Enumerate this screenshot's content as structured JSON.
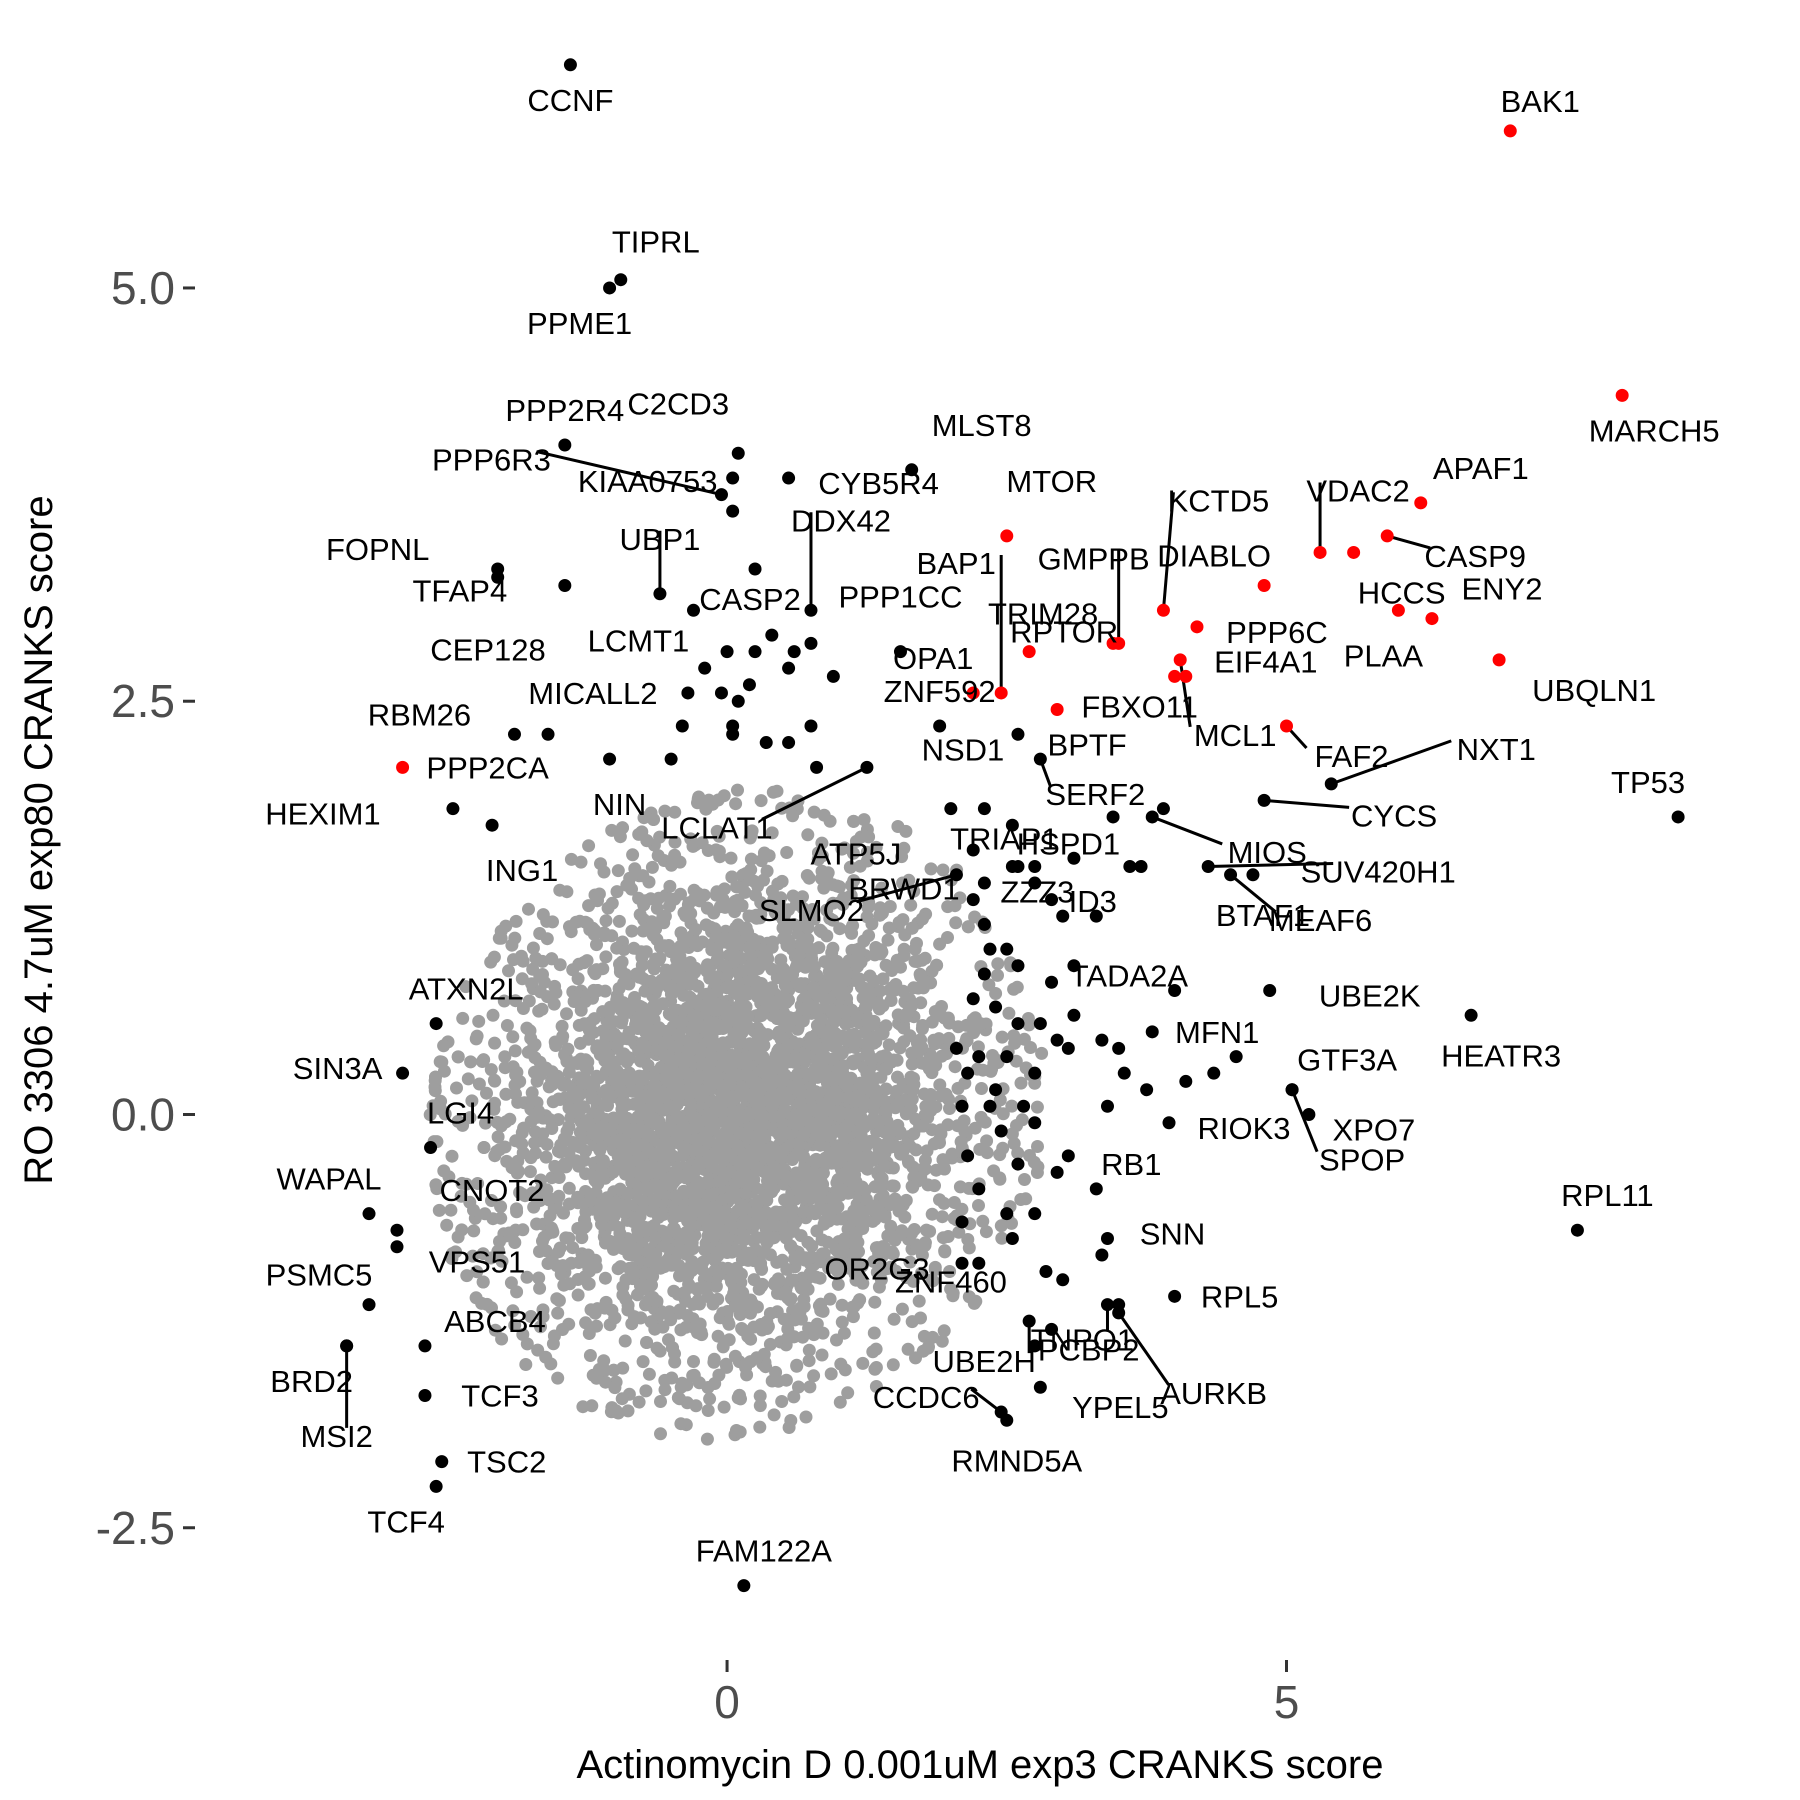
{
  "chart_data": {
    "type": "scatter",
    "title": "",
    "xlabel": "Actinomycin D 0.001uM exp3 CRANKS score",
    "ylabel": "RO 3306 4.7uM exp80 CRANKS score",
    "xlim": [
      -4.8,
      9.5
    ],
    "ylim": [
      -3.3,
      6.5
    ],
    "grid": false,
    "legend": "none",
    "xticks": [
      {
        "v": 0,
        "label": "0"
      },
      {
        "v": 5,
        "label": "5"
      }
    ],
    "yticks": [
      {
        "v": 5,
        "label": "5.0"
      },
      {
        "v": 2.5,
        "label": "2.5"
      },
      {
        "v": 0,
        "label": "0.0"
      },
      {
        "v": -2.5,
        "label": "-2.5"
      }
    ],
    "colors": {
      "background_points": "#9e9e9e",
      "highlight": "#ff0000",
      "labeled": "#000000"
    },
    "background_cloud": {
      "center": [
        0.1,
        0.0
      ],
      "sd": [
        1.05,
        0.75
      ],
      "n": 4200,
      "color": "#9e9e9e"
    },
    "series": [
      {
        "color": "#ff0000",
        "points": [
          {
            "label": "BAK1",
            "x": 7.0,
            "y": 5.95
          },
          {
            "label": "MARCH5",
            "x": 8.0,
            "y": 4.35
          },
          {
            "label": "APAF1",
            "x": 6.2,
            "y": 3.7
          },
          {
            "label": "CASP9",
            "x": 5.9,
            "y": 3.5
          },
          {
            "label": "VDAC2",
            "x": 5.3,
            "y": 3.4
          },
          {
            "label": "HCCS",
            "x": 5.6,
            "y": 3.4
          },
          {
            "label": "ENY2",
            "x": 6.3,
            "y": 3.0
          },
          {
            "label": "PLAA",
            "x": 6.0,
            "y": 3.05
          },
          {
            "label": "UBQLN1",
            "x": 6.9,
            "y": 2.75
          },
          {
            "label": "DIABLO",
            "x": 4.8,
            "y": 3.2
          },
          {
            "label": "KCTD5",
            "x": 3.9,
            "y": 3.05
          },
          {
            "label": "PPP6C",
            "x": 4.2,
            "y": 2.95
          },
          {
            "label": "MCL1",
            "x": 4.05,
            "y": 2.75
          },
          {
            "label": "EIF4A1",
            "x": 4.1,
            "y": 2.65
          },
          {
            "label": "FBXO11",
            "x": 4.0,
            "y": 2.65
          },
          {
            "label": "FAF2",
            "x": 5.0,
            "y": 2.35
          },
          {
            "label": "MTOR",
            "x": 2.5,
            "y": 3.5
          },
          {
            "label": "GMPPB",
            "x": 3.5,
            "y": 2.85
          },
          {
            "label": "TRIM28",
            "x": 3.45,
            "y": 2.85
          },
          {
            "label": "RPTOR",
            "x": 2.7,
            "y": 2.8
          },
          {
            "label": "BAP1",
            "x": 2.45,
            "y": 2.55
          },
          {
            "label": "OPA1",
            "x": 2.2,
            "y": 2.55
          },
          {
            "label": "BPTF",
            "x": 2.95,
            "y": 2.45
          },
          {
            "label": "PPP2CA",
            "x": -2.9,
            "y": 2.1
          }
        ]
      },
      {
        "color": "#000000",
        "points": [
          {
            "label": "CCNF",
            "x": -1.4,
            "y": 6.35
          },
          {
            "label": "TIPRL",
            "x": -0.95,
            "y": 5.05
          },
          {
            "label": "PPME1",
            "x": -1.05,
            "y": 5.0
          },
          {
            "label": "PPP2R4",
            "x": -1.45,
            "y": 4.05
          },
          {
            "label": "PPP6R3",
            "x": -0.05,
            "y": 3.75
          },
          {
            "label": "KIAA0753",
            "x": 0.05,
            "y": 3.65
          },
          {
            "label": "C2CD3",
            "x": 0.1,
            "y": 4.0
          },
          {
            "label": "CYB5R4",
            "x": 0.55,
            "y": 3.85
          },
          {
            "label": "MLST8",
            "x": 1.65,
            "y": 3.9
          },
          {
            "label": "FOPNL",
            "x": -2.05,
            "y": 3.3
          },
          {
            "label": "TFAP4",
            "x": -1.45,
            "y": 3.2
          },
          {
            "label": "UBP1",
            "x": -0.6,
            "y": 3.15
          },
          {
            "label": "LCMT1",
            "x": -0.3,
            "y": 3.05
          },
          {
            "label": "DDX42",
            "x": 0.75,
            "y": 3.05
          },
          {
            "label": "CASP2",
            "x": 0.25,
            "y": 3.3
          },
          {
            "label": "PPP1CC",
            "x": 1.55,
            "y": 2.8
          },
          {
            "label": "RBM26",
            "x": -1.9,
            "y": 2.3
          },
          {
            "label": "CEP128",
            "x": -1.6,
            "y": 2.3
          },
          {
            "label": "MICALL2",
            "x": -0.35,
            "y": 2.55
          },
          {
            "label": "NIN",
            "x": -1.05,
            "y": 2.15
          },
          {
            "label": "LCLAT1",
            "x": 1.25,
            "y": 2.1
          },
          {
            "label": "ZNF592",
            "x": 1.9,
            "y": 2.35
          },
          {
            "label": "NSD1",
            "x": 2.6,
            "y": 2.3
          },
          {
            "label": "HEXIM1",
            "x": -2.45,
            "y": 1.85
          },
          {
            "label": "TRIAP1",
            "x": 2.3,
            "y": 1.85
          },
          {
            "label": "SERF2",
            "x": 2.8,
            "y": 2.15
          },
          {
            "label": "ATP5J",
            "x": 2.0,
            "y": 1.85
          },
          {
            "label": "ING1",
            "x": -2.1,
            "y": 1.75
          },
          {
            "label": "ZZZ3",
            "x": 2.55,
            "y": 1.5
          },
          {
            "label": "HSPD1",
            "x": 3.9,
            "y": 1.85
          },
          {
            "label": "MIOS",
            "x": 3.8,
            "y": 1.8
          },
          {
            "label": "CYCS",
            "x": 4.8,
            "y": 1.9
          },
          {
            "label": "NXT1",
            "x": 5.4,
            "y": 2.0
          },
          {
            "label": "TP53",
            "x": 8.5,
            "y": 1.8
          },
          {
            "label": "BRWD1",
            "x": 3.1,
            "y": 1.55
          },
          {
            "label": "SUV420H1",
            "x": 4.3,
            "y": 1.5
          },
          {
            "label": "SLMO2",
            "x": 2.05,
            "y": 1.45
          },
          {
            "label": "ID3",
            "x": 3.0,
            "y": 1.2
          },
          {
            "label": "BTAF1",
            "x": 4.7,
            "y": 1.45
          },
          {
            "label": "MEAF6",
            "x": 4.5,
            "y": 1.45
          },
          {
            "label": "TADA2A",
            "x": 3.1,
            "y": 0.9
          },
          {
            "label": "UBE2K",
            "x": 4.85,
            "y": 0.75
          },
          {
            "label": "HEATR3",
            "x": 6.65,
            "y": 0.6
          },
          {
            "label": "ATXN2L",
            "x": -2.6,
            "y": 0.55
          },
          {
            "label": "MFN1",
            "x": 3.8,
            "y": 0.5
          },
          {
            "label": "GTF3A",
            "x": 5.05,
            "y": 0.15
          },
          {
            "label": "SIN3A",
            "x": -2.9,
            "y": 0.25
          },
          {
            "label": "LGI4",
            "x": -2.65,
            "y": -0.2
          },
          {
            "label": "XPO7",
            "x": 5.2,
            "y": 0.0
          },
          {
            "label": "RIOK3",
            "x": 3.95,
            "y": -0.05
          },
          {
            "label": "SPOP",
            "x": 5.05,
            "y": 0.15
          },
          {
            "label": "RB1",
            "x": 3.3,
            "y": -0.45
          },
          {
            "label": "WAPAL",
            "x": -3.2,
            "y": -0.6
          },
          {
            "label": "CNOT2",
            "x": -2.95,
            "y": -0.7
          },
          {
            "label": "VPS51",
            "x": -2.95,
            "y": -0.8
          },
          {
            "label": "SNN",
            "x": 3.4,
            "y": -0.75
          },
          {
            "label": "RPL11",
            "x": 7.6,
            "y": -0.7
          },
          {
            "label": "OR2G3",
            "x": 2.1,
            "y": -0.9
          },
          {
            "label": "RPL5",
            "x": 4.0,
            "y": -1.1
          },
          {
            "label": "ZNF460",
            "x": 2.85,
            "y": -0.95
          },
          {
            "label": "TNPO1",
            "x": 3.4,
            "y": -1.15
          },
          {
            "label": "PSMC5",
            "x": -3.2,
            "y": -1.15
          },
          {
            "label": "ABCB4",
            "x": -2.7,
            "y": -1.4
          },
          {
            "label": "PCBP2",
            "x": 3.5,
            "y": -1.15
          },
          {
            "label": "UBE2H",
            "x": 2.7,
            "y": -1.25
          },
          {
            "label": "AURKB",
            "x": 3.5,
            "y": -1.2
          },
          {
            "label": "BRD2",
            "x": -3.4,
            "y": -1.4
          },
          {
            "label": "MSI2",
            "x": -3.4,
            "y": -1.4
          },
          {
            "label": "TCF3",
            "x": -2.7,
            "y": -1.7
          },
          {
            "label": "CCDC6",
            "x": 2.45,
            "y": -1.8
          },
          {
            "label": "YPEL5",
            "x": 2.8,
            "y": -1.65
          },
          {
            "label": "RMND5A",
            "x": 2.5,
            "y": -1.85
          },
          {
            "label": "TSC2",
            "x": -2.55,
            "y": -2.1
          },
          {
            "label": "TCF4",
            "x": -2.6,
            "y": -2.25
          },
          {
            "label": "FAM122A",
            "x": 0.15,
            "y": -2.85
          }
        ]
      }
    ],
    "extra_points": [
      [
        -2.05,
        3.25
      ],
      [
        0.05,
        3.85
      ],
      [
        0.25,
        2.8
      ],
      [
        0.6,
        2.8
      ],
      [
        0.75,
        2.85
      ],
      [
        0.95,
        2.65
      ],
      [
        0.0,
        2.8
      ],
      [
        -0.2,
        2.7
      ],
      [
        0.4,
        2.9
      ],
      [
        0.55,
        2.7
      ],
      [
        0.1,
        2.5
      ],
      [
        -0.05,
        2.55
      ],
      [
        0.2,
        2.6
      ],
      [
        0.35,
        2.25
      ],
      [
        0.05,
        2.35
      ],
      [
        -0.4,
        2.35
      ],
      [
        -0.5,
        2.15
      ],
      [
        0.05,
        2.3
      ],
      [
        0.8,
        2.1
      ],
      [
        0.55,
        2.25
      ],
      [
        0.75,
        2.35
      ],
      [
        2.2,
        1.6
      ],
      [
        2.55,
        1.75
      ],
      [
        2.3,
        1.4
      ],
      [
        2.6,
        1.5
      ],
      [
        2.75,
        1.5
      ],
      [
        2.75,
        1.4
      ],
      [
        2.9,
        1.3
      ],
      [
        2.2,
        1.3
      ],
      [
        2.3,
        1.15
      ],
      [
        2.35,
        1.0
      ],
      [
        2.5,
        1.0
      ],
      [
        2.3,
        0.85
      ],
      [
        2.6,
        0.9
      ],
      [
        2.2,
        0.7
      ],
      [
        2.4,
        0.65
      ],
      [
        2.6,
        0.55
      ],
      [
        2.8,
        0.55
      ],
      [
        2.9,
        0.8
      ],
      [
        3.1,
        0.6
      ],
      [
        3.05,
        0.4
      ],
      [
        2.95,
        0.45
      ],
      [
        2.5,
        0.35
      ],
      [
        2.25,
        0.35
      ],
      [
        2.05,
        0.4
      ],
      [
        2.15,
        0.25
      ],
      [
        2.4,
        0.15
      ],
      [
        2.75,
        0.25
      ],
      [
        2.1,
        0.05
      ],
      [
        2.35,
        0.05
      ],
      [
        2.65,
        0.05
      ],
      [
        2.75,
        -0.05
      ],
      [
        2.15,
        -0.25
      ],
      [
        2.45,
        -0.1
      ],
      [
        2.6,
        -0.3
      ],
      [
        2.25,
        -0.45
      ],
      [
        2.5,
        -0.6
      ],
      [
        2.1,
        -0.65
      ],
      [
        2.25,
        -0.9
      ],
      [
        2.55,
        -0.75
      ],
      [
        2.75,
        -0.6
      ],
      [
        2.95,
        -0.35
      ],
      [
        3.05,
        -0.25
      ],
      [
        3.4,
        0.05
      ],
      [
        3.75,
        0.15
      ],
      [
        4.1,
        0.2
      ],
      [
        4.35,
        0.25
      ],
      [
        4.55,
        0.35
      ],
      [
        4.0,
        0.75
      ],
      [
        3.5,
        0.4
      ],
      [
        3.55,
        0.25
      ],
      [
        3.35,
        0.45
      ],
      [
        3.3,
        1.2
      ],
      [
        3.6,
        1.5
      ],
      [
        3.7,
        1.5
      ],
      [
        3.45,
        1.8
      ],
      [
        3.35,
        -0.85
      ],
      [
        2.9,
        -1.3
      ],
      [
        2.75,
        -1.4
      ],
      [
        3.0,
        -1.0
      ]
    ]
  }
}
